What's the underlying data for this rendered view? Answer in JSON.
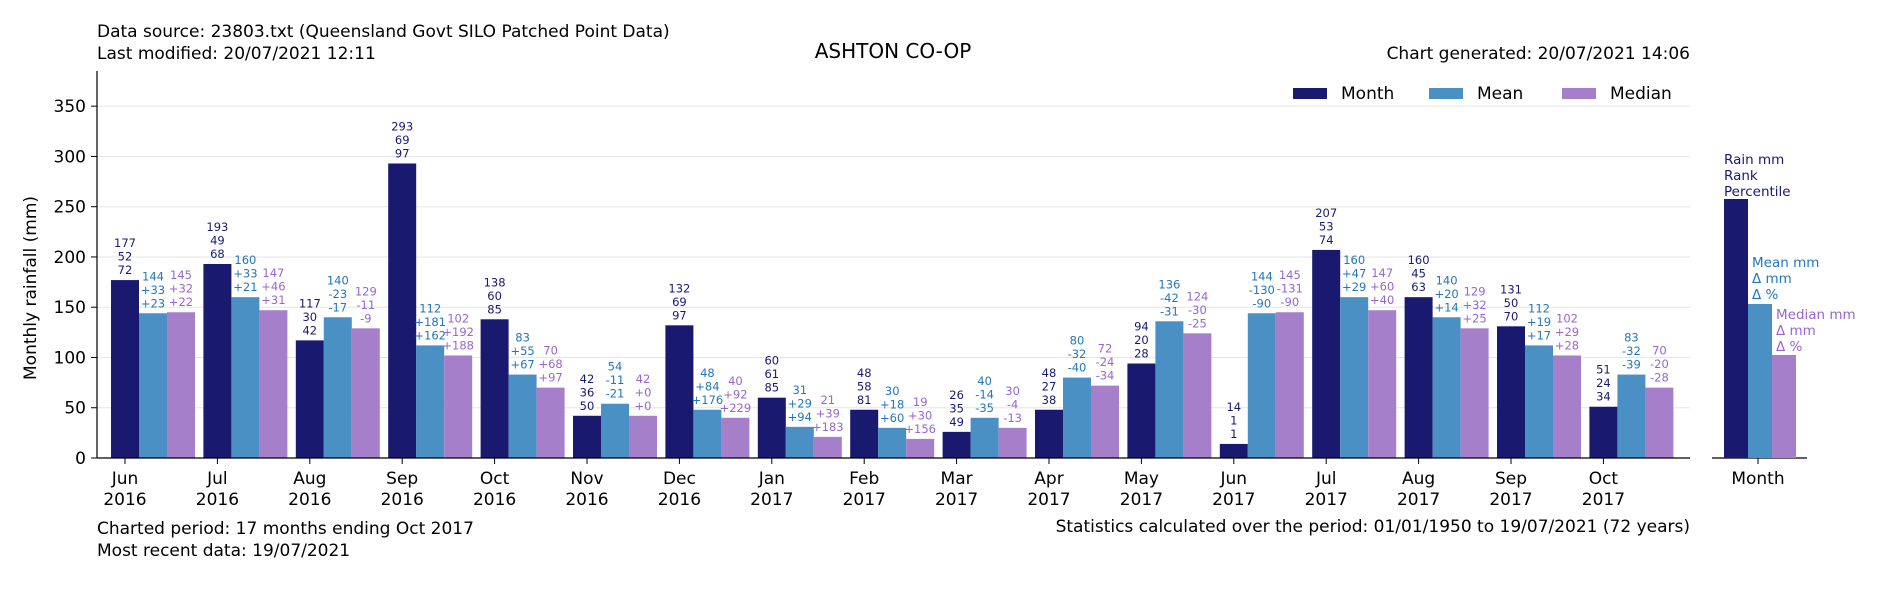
{
  "header": {
    "source": "Data source: 23803.txt (Queensland Govt SILO Patched Point Data)",
    "modified": "Last modified: 20/07/2021 12:11",
    "title": "ASHTON CO-OP",
    "generated": "Chart generated: 20/07/2021 14:06"
  },
  "footer": {
    "period": "Charted period: 17 months ending Oct 2017",
    "recent": "Most recent data: 19/07/2021",
    "stats": "Statistics calculated over the period: 01/01/1950 to 19/07/2021 (72 years)"
  },
  "colors": {
    "month": "#191970",
    "mean": "#4a90c4",
    "median": "#a67fcb",
    "mean_text": "#2277bb",
    "median_text": "#9966cc"
  },
  "chart_data": {
    "type": "bar",
    "ylabel": "Monthly rainfall (mm)",
    "ylim": [
      0,
      385
    ],
    "yticks": [
      0,
      50,
      100,
      150,
      200,
      250,
      300,
      350
    ],
    "grid": true,
    "legend_position": "top-right",
    "legend": [
      "Month",
      "Mean",
      "Median"
    ],
    "categories": [
      [
        "Jun",
        "2016"
      ],
      [
        "Jul",
        "2016"
      ],
      [
        "Aug",
        "2016"
      ],
      [
        "Sep",
        "2016"
      ],
      [
        "Oct",
        "2016"
      ],
      [
        "Nov",
        "2016"
      ],
      [
        "Dec",
        "2016"
      ],
      [
        "Jan",
        "2017"
      ],
      [
        "Feb",
        "2017"
      ],
      [
        "Mar",
        "2017"
      ],
      [
        "Apr",
        "2017"
      ],
      [
        "May",
        "2017"
      ],
      [
        "Jun",
        "2017"
      ],
      [
        "Jul",
        "2017"
      ],
      [
        "Aug",
        "2017"
      ],
      [
        "Sep",
        "2017"
      ],
      [
        "Oct",
        "2017"
      ]
    ],
    "series": [
      {
        "name": "Month",
        "values": [
          177,
          193,
          117,
          293,
          138,
          42,
          132,
          60,
          48,
          26,
          48,
          94,
          14,
          207,
          160,
          131,
          51
        ],
        "rank": [
          "52",
          "49",
          "30",
          "69",
          "60",
          "36",
          "69",
          "61",
          "58",
          "35",
          "27",
          "20",
          "1",
          "53",
          "45",
          "50",
          "24"
        ],
        "percentile": [
          "72",
          "68",
          "42",
          "97",
          "85",
          "50",
          "97",
          "85",
          "81",
          "49",
          "38",
          "28",
          "1",
          "74",
          "63",
          "70",
          "34"
        ]
      },
      {
        "name": "Mean",
        "values": [
          144,
          160,
          140,
          112,
          83,
          54,
          48,
          31,
          30,
          40,
          80,
          136,
          144,
          160,
          140,
          112,
          83
        ],
        "delta_mm": [
          "+33",
          "+33",
          "-23",
          "+181",
          "+55",
          "-11",
          "+84",
          "+29",
          "+18",
          "-14",
          "-32",
          "-42",
          "-130",
          "+47",
          "+20",
          "+19",
          "-32"
        ],
        "delta_pct": [
          "+23",
          "+21",
          "-17",
          "+162",
          "+67",
          "-21",
          "+176",
          "+94",
          "+60",
          "-35",
          "-40",
          "-31",
          "-90",
          "+29",
          "+14",
          "+17",
          "-39"
        ]
      },
      {
        "name": "Median",
        "values": [
          145,
          147,
          129,
          102,
          70,
          42,
          40,
          21,
          19,
          30,
          72,
          124,
          145,
          147,
          129,
          102,
          70
        ],
        "delta_mm": [
          "+32",
          "+46",
          "-11",
          "+192",
          "+68",
          "+0",
          "+92",
          "+39",
          "+30",
          "-4",
          "-24",
          "-30",
          "-131",
          "+60",
          "+32",
          "+29",
          "-20"
        ],
        "delta_pct": [
          "+22",
          "+31",
          "-9",
          "+188",
          "+97",
          "+0",
          "+229",
          "+183",
          "+156",
          "-13",
          "-34",
          "-25",
          "-90",
          "+40",
          "+25",
          "+28",
          "-28"
        ]
      }
    ],
    "key_panel": {
      "month_lines": [
        "Rain mm",
        "Rank",
        "Percentile"
      ],
      "mean_lines": [
        "Mean mm",
        "Δ mm",
        "Δ %"
      ],
      "median_lines": [
        "Median mm",
        "Δ mm",
        "Δ %"
      ],
      "xlabel": "Month"
    }
  }
}
